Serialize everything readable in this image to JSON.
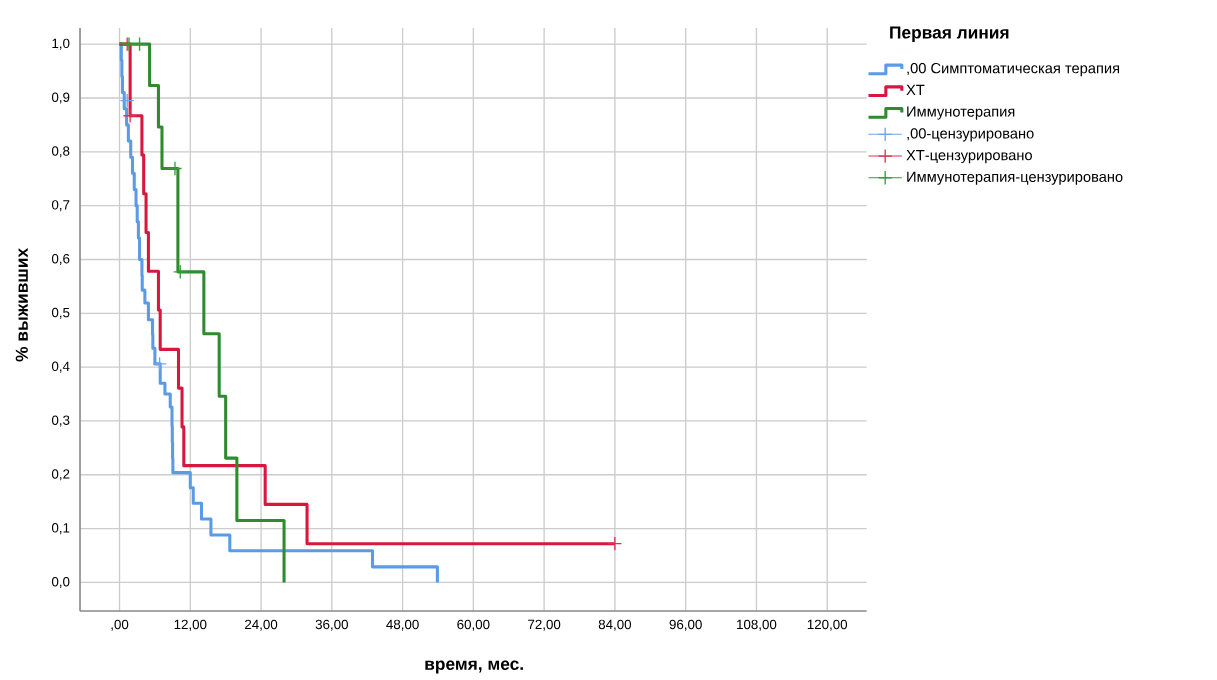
{
  "chart_data": {
    "type": "step",
    "xlabel": "время, мес.",
    "ylabel": "% выживших",
    "legend_title": "Первая линия",
    "xlim": [
      -6.7,
      126.7
    ],
    "ylim": [
      -0.053,
      1.03
    ],
    "xticks": [
      {
        "value": 0,
        "label": ",00"
      },
      {
        "value": 12,
        "label": "12,00"
      },
      {
        "value": 24,
        "label": "24,00"
      },
      {
        "value": 36,
        "label": "36,00"
      },
      {
        "value": 48,
        "label": "48,00"
      },
      {
        "value": 60,
        "label": "60,00"
      },
      {
        "value": 72,
        "label": "72,00"
      },
      {
        "value": 84,
        "label": "84,00"
      },
      {
        "value": 96,
        "label": "96,00"
      },
      {
        "value": 108,
        "label": "108,00"
      },
      {
        "value": 120,
        "label": "120,00"
      }
    ],
    "yticks": [
      {
        "value": 0,
        "label": "0,0"
      },
      {
        "value": 0.1,
        "label": "0,1"
      },
      {
        "value": 0.2,
        "label": "0,2"
      },
      {
        "value": 0.3,
        "label": "0,3"
      },
      {
        "value": 0.4,
        "label": "0,4"
      },
      {
        "value": 0.5,
        "label": "0,5"
      },
      {
        "value": 0.6,
        "label": "0,6"
      },
      {
        "value": 0.7,
        "label": "0,7"
      },
      {
        "value": 0.8,
        "label": "0,8"
      },
      {
        "value": 0.9,
        "label": "0,9"
      },
      {
        "value": 1.0,
        "label": "1,0"
      }
    ],
    "grid": true,
    "legend": "right",
    "series": [
      {
        "name": ",00 Симптоматическая терапия",
        "color": "#5b9be6",
        "x": [
          0,
          0.3,
          0.4,
          0.5,
          0.8,
          1.2,
          1.5,
          1.9,
          2.2,
          2.5,
          2.8,
          3.0,
          3.2,
          3.4,
          3.8,
          3.85,
          4.3,
          4.9,
          5.6,
          5.65,
          6.0,
          6.9,
          7.7,
          8.6,
          8.9,
          8.95,
          9.0,
          9.05,
          12.0,
          12.5,
          13.9,
          15.5,
          18.7,
          42.9,
          53.9
        ],
        "values": [
          1.0,
          0.97,
          0.94,
          0.91,
          0.88,
          0.85,
          0.82,
          0.79,
          0.76,
          0.73,
          0.7,
          0.67,
          0.64,
          0.6,
          0.57,
          0.543,
          0.519,
          0.488,
          0.46,
          0.435,
          0.406,
          0.37,
          0.35,
          0.326,
          0.29,
          0.26,
          0.23,
          0.204,
          0.176,
          0.147,
          0.118,
          0.088,
          0.059,
          0.029,
          0.0
        ]
      },
      {
        "name": "ХТ",
        "color": "#d8173f",
        "x": [
          0,
          1.8,
          3.8,
          4.1,
          4.5,
          4.9,
          6.6,
          6.9,
          10.0,
          10.6,
          10.9,
          24.7,
          31.8,
          84
        ],
        "values": [
          1.0,
          0.867,
          0.794,
          0.722,
          0.65,
          0.578,
          0.506,
          0.433,
          0.361,
          0.289,
          0.217,
          0.145,
          0.072,
          0.072
        ]
      },
      {
        "name": "Иммунотерапия",
        "color": "#2e8b2e",
        "x": [
          0,
          5.1,
          6.6,
          7.2,
          9.9,
          14.3,
          16.9,
          18.0,
          19.9,
          27.9
        ],
        "values": [
          1.0,
          0.923,
          0.846,
          0.769,
          0.577,
          0.462,
          0.346,
          0.231,
          0.115,
          0.0
        ]
      },
      {
        "name": ",00-цензурировано",
        "type": "scatter",
        "marker": "cross",
        "color": "#6aa5ef",
        "x": [
          1.3,
          6.8
        ],
        "values": [
          0.895,
          0.406
        ]
      },
      {
        "name": "ХТ-цензурировано",
        "type": "scatter",
        "marker": "cross",
        "color": "#e03050",
        "x": [
          1.3,
          1.8,
          84
        ],
        "values": [
          1.0,
          0.867,
          0.072
        ]
      },
      {
        "name": "Иммунотерапия-цензурировано",
        "type": "scatter",
        "marker": "cross",
        "color": "#3a9a3a",
        "x": [
          1.6,
          3.4,
          9.4,
          10.3
        ],
        "values": [
          1.0,
          1.0,
          0.769,
          0.577
        ]
      }
    ]
  }
}
